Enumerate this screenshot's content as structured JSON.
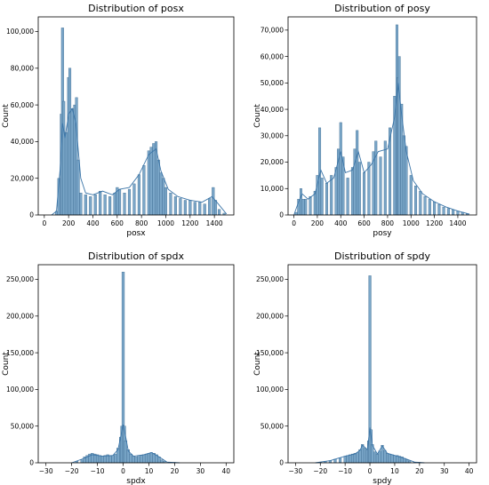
{
  "colors": {
    "bar_fill": "#7aa6c8",
    "bar_edge": "#2f5f86",
    "kde_line": "#3b75a8"
  },
  "chart_data": [
    {
      "type": "bar",
      "title": "Distribution of posx",
      "xlabel": "posx",
      "ylabel": "Count",
      "xlim": [
        -50,
        1560
      ],
      "ylim": [
        0,
        108000
      ],
      "xticks": [
        {
          "v": 0,
          "label": "0"
        },
        {
          "v": 200,
          "label": "200"
        },
        {
          "v": 400,
          "label": "400"
        },
        {
          "v": 600,
          "label": "600"
        },
        {
          "v": 800,
          "label": "800"
        },
        {
          "v": 1000,
          "label": "1000"
        },
        {
          "v": 1200,
          "label": "1200"
        },
        {
          "v": 1400,
          "label": "1400"
        }
      ],
      "yticks": [
        {
          "v": 0,
          "label": "0"
        },
        {
          "v": 20000,
          "label": "20,000"
        },
        {
          "v": 40000,
          "label": "40,000"
        },
        {
          "v": 60000,
          "label": "60,000"
        },
        {
          "v": 80000,
          "label": "80,000"
        },
        {
          "v": 100000,
          "label": "100,000"
        }
      ],
      "bin_width": 20,
      "bins": [
        [
          100,
          2000
        ],
        [
          120,
          20000
        ],
        [
          140,
          55000
        ],
        [
          150,
          102000
        ],
        [
          160,
          62000
        ],
        [
          180,
          45000
        ],
        [
          200,
          75000
        ],
        [
          210,
          80000
        ],
        [
          230,
          58000
        ],
        [
          250,
          60000
        ],
        [
          265,
          64000
        ],
        [
          280,
          30000
        ],
        [
          300,
          12000
        ],
        [
          340,
          11000
        ],
        [
          380,
          10000
        ],
        [
          420,
          11000
        ],
        [
          460,
          13000
        ],
        [
          500,
          11000
        ],
        [
          540,
          10000
        ],
        [
          580,
          12000
        ],
        [
          600,
          15000
        ],
        [
          620,
          14000
        ],
        [
          660,
          12000
        ],
        [
          700,
          14000
        ],
        [
          740,
          17000
        ],
        [
          780,
          22000
        ],
        [
          820,
          27000
        ],
        [
          860,
          35000
        ],
        [
          880,
          37000
        ],
        [
          900,
          39000
        ],
        [
          920,
          40000
        ],
        [
          940,
          30000
        ],
        [
          960,
          23000
        ],
        [
          980,
          20000
        ],
        [
          1000,
          15000
        ],
        [
          1040,
          12000
        ],
        [
          1080,
          10000
        ],
        [
          1120,
          9000
        ],
        [
          1160,
          8000
        ],
        [
          1200,
          8000
        ],
        [
          1240,
          7000
        ],
        [
          1280,
          7000
        ],
        [
          1320,
          6000
        ],
        [
          1360,
          9000
        ],
        [
          1390,
          15000
        ],
        [
          1410,
          8000
        ],
        [
          1440,
          3000
        ],
        [
          1480,
          1000
        ]
      ],
      "kde": [
        [
          60,
          0
        ],
        [
          100,
          2000
        ],
        [
          130,
          25000
        ],
        [
          150,
          50000
        ],
        [
          170,
          42000
        ],
        [
          200,
          55000
        ],
        [
          230,
          58000
        ],
        [
          260,
          50000
        ],
        [
          300,
          20000
        ],
        [
          340,
          12000
        ],
        [
          400,
          11000
        ],
        [
          480,
          13000
        ],
        [
          560,
          11000
        ],
        [
          620,
          14000
        ],
        [
          700,
          15000
        ],
        [
          780,
          22000
        ],
        [
          860,
          33000
        ],
        [
          920,
          36000
        ],
        [
          960,
          24000
        ],
        [
          1020,
          14000
        ],
        [
          1100,
          10000
        ],
        [
          1200,
          8000
        ],
        [
          1300,
          7000
        ],
        [
          1380,
          10000
        ],
        [
          1420,
          7000
        ],
        [
          1500,
          500
        ]
      ]
    },
    {
      "type": "bar",
      "title": "Distribution of posy",
      "xlabel": "posy",
      "ylabel": "Count",
      "xlim": [
        -50,
        1560
      ],
      "ylim": [
        0,
        75000
      ],
      "xticks": [
        {
          "v": 0,
          "label": "0"
        },
        {
          "v": 200,
          "label": "200"
        },
        {
          "v": 400,
          "label": "400"
        },
        {
          "v": 600,
          "label": "600"
        },
        {
          "v": 800,
          "label": "800"
        },
        {
          "v": 1000,
          "label": "1000"
        },
        {
          "v": 1200,
          "label": "1200"
        },
        {
          "v": 1400,
          "label": "1400"
        }
      ],
      "yticks": [
        {
          "v": 0,
          "label": "0"
        },
        {
          "v": 10000,
          "label": "10,000"
        },
        {
          "v": 20000,
          "label": "20,000"
        },
        {
          "v": 30000,
          "label": "30,000"
        },
        {
          "v": 40000,
          "label": "40,000"
        },
        {
          "v": 50000,
          "label": "50,000"
        },
        {
          "v": 60000,
          "label": "60,000"
        },
        {
          "v": 70000,
          "label": "70,000"
        }
      ],
      "bin_width": 20,
      "bins": [
        [
          20,
          1000
        ],
        [
          40,
          6000
        ],
        [
          60,
          10000
        ],
        [
          80,
          6000
        ],
        [
          100,
          6000
        ],
        [
          140,
          7000
        ],
        [
          180,
          9000
        ],
        [
          200,
          15000
        ],
        [
          220,
          33000
        ],
        [
          240,
          14000
        ],
        [
          280,
          12000
        ],
        [
          320,
          15000
        ],
        [
          360,
          18000
        ],
        [
          380,
          25000
        ],
        [
          400,
          35000
        ],
        [
          420,
          22000
        ],
        [
          460,
          14000
        ],
        [
          500,
          18000
        ],
        [
          520,
          25000
        ],
        [
          540,
          32000
        ],
        [
          560,
          20000
        ],
        [
          600,
          16000
        ],
        [
          640,
          20000
        ],
        [
          680,
          24000
        ],
        [
          700,
          28000
        ],
        [
          740,
          22000
        ],
        [
          780,
          28000
        ],
        [
          820,
          33000
        ],
        [
          860,
          45000
        ],
        [
          880,
          72000
        ],
        [
          890,
          52000
        ],
        [
          900,
          60000
        ],
        [
          920,
          42000
        ],
        [
          940,
          30000
        ],
        [
          960,
          26000
        ],
        [
          1000,
          15000
        ],
        [
          1040,
          11000
        ],
        [
          1080,
          9000
        ],
        [
          1120,
          7000
        ],
        [
          1160,
          6000
        ],
        [
          1200,
          5000
        ],
        [
          1240,
          4000
        ],
        [
          1280,
          3000
        ],
        [
          1320,
          2500
        ],
        [
          1360,
          2000
        ],
        [
          1400,
          1500
        ],
        [
          1440,
          1000
        ],
        [
          1480,
          500
        ]
      ],
      "kde": [
        [
          0,
          0
        ],
        [
          40,
          5000
        ],
        [
          70,
          8000
        ],
        [
          120,
          6000
        ],
        [
          180,
          8000
        ],
        [
          230,
          17000
        ],
        [
          280,
          12000
        ],
        [
          340,
          14000
        ],
        [
          400,
          24000
        ],
        [
          440,
          16000
        ],
        [
          500,
          17000
        ],
        [
          550,
          24000
        ],
        [
          600,
          16000
        ],
        [
          660,
          19000
        ],
        [
          720,
          24000
        ],
        [
          800,
          25000
        ],
        [
          860,
          37000
        ],
        [
          890,
          50000
        ],
        [
          920,
          38000
        ],
        [
          960,
          24000
        ],
        [
          1020,
          13000
        ],
        [
          1100,
          8000
        ],
        [
          1200,
          5000
        ],
        [
          1300,
          3000
        ],
        [
          1400,
          1500
        ],
        [
          1500,
          300
        ]
      ]
    },
    {
      "type": "bar",
      "title": "Distribution of spdx",
      "xlabel": "spdx",
      "ylabel": "Count",
      "xlim": [
        -33,
        43
      ],
      "ylim": [
        0,
        270000
      ],
      "xticks": [
        {
          "v": -30,
          "label": "−30"
        },
        {
          "v": -20,
          "label": "−20"
        },
        {
          "v": -10,
          "label": "−10"
        },
        {
          "v": 0,
          "label": "0"
        },
        {
          "v": 10,
          "label": "10"
        },
        {
          "v": 20,
          "label": "20"
        },
        {
          "v": 30,
          "label": "30"
        },
        {
          "v": 40,
          "label": "40"
        }
      ],
      "yticks": [
        {
          "v": 0,
          "label": "0"
        },
        {
          "v": 50000,
          "label": "50,000"
        },
        {
          "v": 100000,
          "label": "100,000"
        },
        {
          "v": 150000,
          "label": "150,000"
        },
        {
          "v": 200000,
          "label": "200,000"
        },
        {
          "v": 250000,
          "label": "250,000"
        }
      ],
      "bin_width": 1,
      "bins": [
        [
          -18,
          2000
        ],
        [
          -16,
          4000
        ],
        [
          -15,
          8000
        ],
        [
          -14,
          10000
        ],
        [
          -13,
          12000
        ],
        [
          -12,
          13000
        ],
        [
          -11,
          12000
        ],
        [
          -10,
          11000
        ],
        [
          -9,
          10000
        ],
        [
          -8,
          9000
        ],
        [
          -7,
          10000
        ],
        [
          -6,
          11000
        ],
        [
          -5,
          9000
        ],
        [
          -4,
          10000
        ],
        [
          -3,
          12000
        ],
        [
          -2,
          20000
        ],
        [
          -1,
          35000
        ],
        [
          -0.5,
          50000
        ],
        [
          0,
          260000
        ],
        [
          0.5,
          50000
        ],
        [
          1,
          30000
        ],
        [
          2,
          18000
        ],
        [
          3,
          12000
        ],
        [
          4,
          9000
        ],
        [
          5,
          8000
        ],
        [
          6,
          9000
        ],
        [
          7,
          10000
        ],
        [
          8,
          11000
        ],
        [
          9,
          12000
        ],
        [
          10,
          13000
        ],
        [
          11,
          14000
        ],
        [
          12,
          13000
        ],
        [
          13,
          11000
        ],
        [
          14,
          8000
        ],
        [
          15,
          4000
        ],
        [
          16,
          2000
        ],
        [
          18,
          800
        ],
        [
          20,
          500
        ]
      ],
      "kde": [
        [
          -20,
          0
        ],
        [
          -16,
          5000
        ],
        [
          -12,
          11000
        ],
        [
          -8,
          9000
        ],
        [
          -4,
          10000
        ],
        [
          -2,
          18000
        ],
        [
          -1,
          35000
        ],
        [
          0,
          52000
        ],
        [
          1,
          35000
        ],
        [
          2,
          16000
        ],
        [
          4,
          9000
        ],
        [
          8,
          11000
        ],
        [
          11,
          14000
        ],
        [
          14,
          8000
        ],
        [
          17,
          1000
        ],
        [
          22,
          0
        ]
      ]
    },
    {
      "type": "bar",
      "title": "Distribution of spdy",
      "xlabel": "spdy",
      "ylabel": "Count",
      "xlim": [
        -33,
        43
      ],
      "ylim": [
        0,
        270000
      ],
      "xticks": [
        {
          "v": -30,
          "label": "−30"
        },
        {
          "v": -20,
          "label": "−20"
        },
        {
          "v": -10,
          "label": "−10"
        },
        {
          "v": 0,
          "label": "0"
        },
        {
          "v": 10,
          "label": "10"
        },
        {
          "v": 20,
          "label": "20"
        },
        {
          "v": 30,
          "label": "30"
        },
        {
          "v": 40,
          "label": "40"
        }
      ],
      "yticks": [
        {
          "v": 0,
          "label": "0"
        },
        {
          "v": 50000,
          "label": "50,000"
        },
        {
          "v": 100000,
          "label": "100,000"
        },
        {
          "v": 150000,
          "label": "150,000"
        },
        {
          "v": 200000,
          "label": "200,000"
        },
        {
          "v": 250000,
          "label": "250,000"
        }
      ],
      "bin_width": 1,
      "bins": [
        [
          -20,
          1000
        ],
        [
          -18,
          2000
        ],
        [
          -16,
          3000
        ],
        [
          -14,
          5000
        ],
        [
          -12,
          7000
        ],
        [
          -10,
          9000
        ],
        [
          -9,
          10000
        ],
        [
          -8,
          11000
        ],
        [
          -7,
          12000
        ],
        [
          -6,
          13000
        ],
        [
          -5,
          14000
        ],
        [
          -4,
          18000
        ],
        [
          -3,
          25000
        ],
        [
          -2,
          20000
        ],
        [
          -1,
          18000
        ],
        [
          -0.5,
          30000
        ],
        [
          0,
          255000
        ],
        [
          0.5,
          45000
        ],
        [
          1,
          25000
        ],
        [
          2,
          15000
        ],
        [
          3,
          12000
        ],
        [
          4,
          16000
        ],
        [
          5,
          24000
        ],
        [
          6,
          17000
        ],
        [
          7,
          13000
        ],
        [
          8,
          12000
        ],
        [
          9,
          11000
        ],
        [
          10,
          10000
        ],
        [
          11,
          10000
        ],
        [
          12,
          9000
        ],
        [
          13,
          8000
        ],
        [
          14,
          6000
        ],
        [
          15,
          4000
        ],
        [
          16,
          2500
        ],
        [
          18,
          1000
        ],
        [
          20,
          500
        ]
      ],
      "kde": [
        [
          -22,
          0
        ],
        [
          -16,
          3000
        ],
        [
          -10,
          9000
        ],
        [
          -6,
          12000
        ],
        [
          -4,
          17000
        ],
        [
          -3,
          24000
        ],
        [
          -1,
          18000
        ],
        [
          0,
          48000
        ],
        [
          1,
          24000
        ],
        [
          3,
          12000
        ],
        [
          5,
          23000
        ],
        [
          7,
          13000
        ],
        [
          10,
          10000
        ],
        [
          14,
          6000
        ],
        [
          18,
          1000
        ],
        [
          22,
          0
        ]
      ]
    }
  ]
}
